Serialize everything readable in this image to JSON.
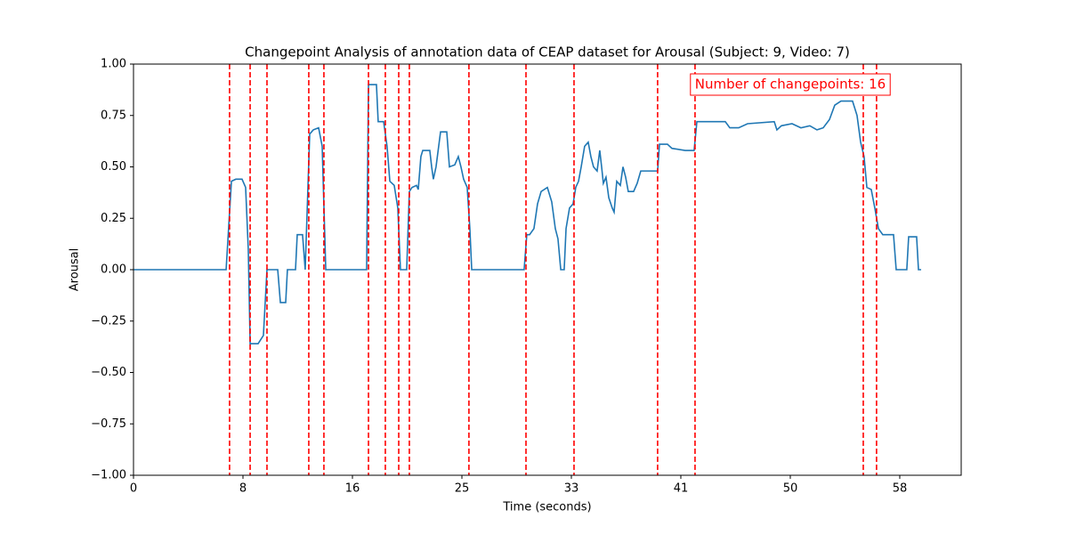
{
  "chart_data": {
    "type": "line",
    "title": "Changepoint Analysis of annotation data of CEAP dataset for Arousal (Subject: 9, Video: 7)",
    "x_label": "Time (seconds)",
    "y_label": "Arousal",
    "annotation": "Number of changepoints: 16",
    "color": "#1f77b4",
    "changepoint_color": "#ff0000",
    "xlim": [
      0,
      62.38
    ],
    "ylim": [
      -1,
      1
    ],
    "xticks": [
      0,
      {
        "value": 8.25,
        "label": "8"
      },
      {
        "value": 16.5,
        "label": "16"
      },
      {
        "value": 24.75,
        "label": "25"
      },
      {
        "value": 33,
        "label": "33"
      },
      {
        "value": 41.25,
        "label": "41"
      },
      {
        "value": 49.5,
        "label": "50"
      },
      {
        "value": 57.75,
        "label": "58"
      }
    ],
    "yticks": [
      {
        "value": -1,
        "label": "−1.00"
      },
      {
        "value": -0.75,
        "label": "−0.75"
      },
      {
        "value": -0.5,
        "label": "−0.50"
      },
      {
        "value": -0.25,
        "label": "−0.25"
      },
      {
        "value": 0,
        "label": "0.00"
      },
      {
        "value": 0.25,
        "label": "0.25"
      },
      {
        "value": 0.5,
        "label": "0.50"
      },
      {
        "value": 0.75,
        "label": "0.75"
      },
      {
        "value": 1,
        "label": "1.00"
      }
    ],
    "changepoints": [
      7.24,
      8.79,
      10.06,
      13.21,
      14.35,
      17.71,
      18.98,
      19.99,
      20.79,
      25.28,
      29.58,
      33.2,
      39.5,
      42.32,
      55.0,
      56.0
    ],
    "x": [
      0,
      6.98,
      7.38,
      7.71,
      8.18,
      8.45,
      8.65,
      8.79,
      9.39,
      9.79,
      10.06,
      10.87,
      11.07,
      11.47,
      11.6,
      12.21,
      12.34,
      12.74,
      12.94,
      13.28,
      13.55,
      13.95,
      14.22,
      14.49,
      17.57,
      17.71,
      18.31,
      18.44,
      18.85,
      19.11,
      19.32,
      19.65,
      19.92,
      20.12,
      20.59,
      20.79,
      20.99,
      21.33,
      21.46,
      21.66,
      21.8,
      22.33,
      22.47,
      22.6,
      22.8,
      23.0,
      23.14,
      23.61,
      23.81,
      24.21,
      24.48,
      24.68,
      24.88,
      25.15,
      25.35,
      25.49,
      29.44,
      29.64,
      29.85,
      30.18,
      30.45,
      30.72,
      31.19,
      31.52,
      31.79,
      31.99,
      32.2,
      32.46,
      32.6,
      32.86,
      33.13,
      33.33,
      33.54,
      33.74,
      34.0,
      34.27,
      34.47,
      34.67,
      34.94,
      35.14,
      35.28,
      35.41,
      35.61,
      35.82,
      36.08,
      36.22,
      36.42,
      36.69,
      36.89,
      37.09,
      37.29,
      37.69,
      37.96,
      38.23,
      38.56,
      39.5,
      39.64,
      40.24,
      40.58,
      41.58,
      42.25,
      42.46,
      44.6,
      44.94,
      45.61,
      46.28,
      48.29,
      48.49,
      48.83,
      49.63,
      50.3,
      50.97,
      51.51,
      51.98,
      52.45,
      52.85,
      53.32,
      54.19,
      54.53,
      54.8,
      55.06,
      55.27,
      55.6,
      55.87,
      56.14,
      56.47,
      57.28,
      57.48,
      58.28,
      58.42,
      59.02,
      59.16,
      59.36
    ],
    "values": [
      0,
      0,
      0.43,
      0.44,
      0.44,
      0.4,
      0.1,
      -0.36,
      -0.36,
      -0.32,
      0,
      0,
      -0.16,
      -0.16,
      0,
      0,
      0.17,
      0.17,
      0,
      0.66,
      0.68,
      0.69,
      0.6,
      0,
      0,
      0.9,
      0.9,
      0.72,
      0.72,
      0.6,
      0.43,
      0.41,
      0.3,
      0,
      0,
      0.38,
      0.4,
      0.41,
      0.39,
      0.55,
      0.58,
      0.58,
      0.5,
      0.44,
      0.5,
      0.6,
      0.67,
      0.67,
      0.5,
      0.51,
      0.55,
      0.5,
      0.44,
      0.4,
      0.2,
      0,
      0,
      0.17,
      0.17,
      0.2,
      0.32,
      0.38,
      0.4,
      0.33,
      0.2,
      0.15,
      0,
      0,
      0.2,
      0.3,
      0.32,
      0.4,
      0.43,
      0.5,
      0.6,
      0.62,
      0.55,
      0.5,
      0.48,
      0.58,
      0.5,
      0.42,
      0.45,
      0.35,
      0.3,
      0.28,
      0.43,
      0.41,
      0.5,
      0.45,
      0.38,
      0.38,
      0.42,
      0.48,
      0.48,
      0.48,
      0.61,
      0.61,
      0.59,
      0.58,
      0.58,
      0.72,
      0.72,
      0.69,
      0.69,
      0.71,
      0.72,
      0.68,
      0.7,
      0.71,
      0.69,
      0.7,
      0.68,
      0.69,
      0.73,
      0.8,
      0.82,
      0.82,
      0.75,
      0.62,
      0.55,
      0.4,
      0.39,
      0.3,
      0.2,
      0.17,
      0.17,
      0,
      0,
      0.16,
      0.16,
      0,
      0
    ]
  }
}
